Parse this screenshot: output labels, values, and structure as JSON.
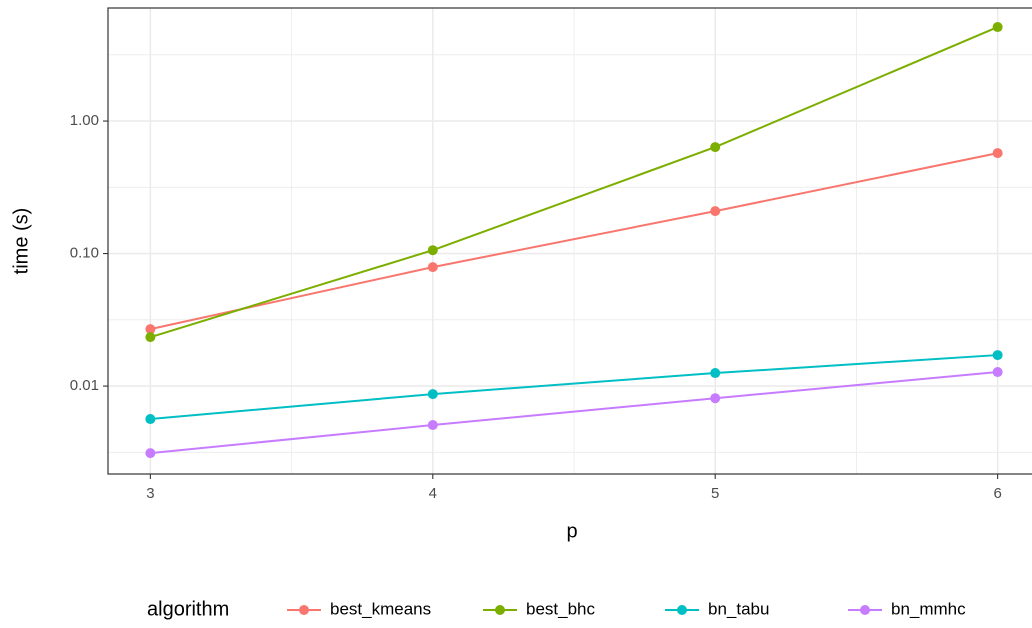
{
  "chart_data": {
    "type": "line",
    "x_label": "p",
    "y_label": "time (s)",
    "x": [
      3,
      4,
      5,
      6
    ],
    "series": [
      {
        "name": "best_kmeans",
        "color": "#F8766D",
        "values": [
          0.0269,
          0.079,
          0.209,
          0.573
        ]
      },
      {
        "name": "best_bhc",
        "color": "#7CAE00",
        "values": [
          0.0234,
          0.106,
          0.636,
          5.12
        ]
      },
      {
        "name": "bn_tabu",
        "color": "#00BFC4",
        "values": [
          0.00564,
          0.0087,
          0.01254,
          0.01714
        ]
      },
      {
        "name": "bn_mmhc",
        "color": "#C77CFF",
        "values": [
          0.00312,
          0.00508,
          0.0081,
          0.01276
        ]
      }
    ],
    "xlim": [
      2.85,
      6.15
    ],
    "xticks": [
      3,
      4,
      5,
      6
    ],
    "ylim": [
      0.00217,
      7.13
    ],
    "yticks": [
      0.01,
      {
        "value": 0.1,
        "label": "0.10"
      },
      {
        "value": 1,
        "label": "1.00"
      }
    ],
    "y_scale": "log",
    "grid": true,
    "legend_title": "algorithm",
    "legend_position": "bottom"
  }
}
